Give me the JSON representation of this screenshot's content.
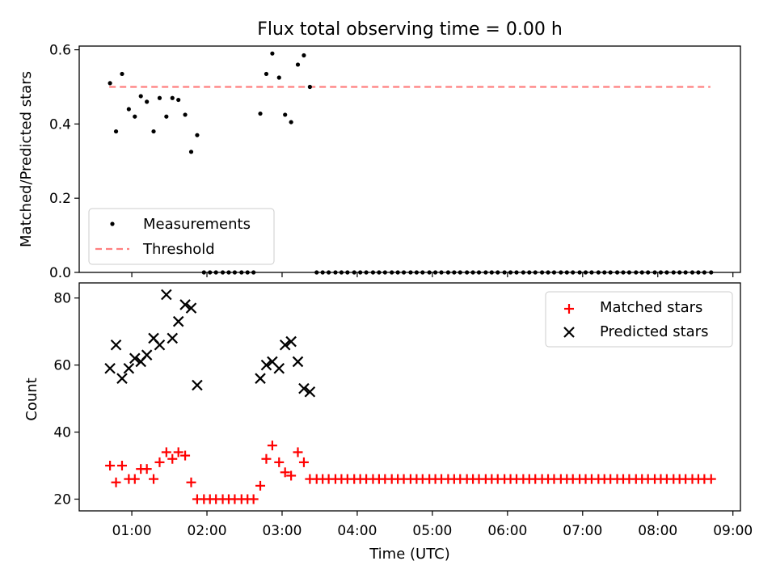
{
  "figure": {
    "title": "Flux total observing time = 0.00 h",
    "xlabel": "Time (UTC)",
    "x_tick_labels": [
      "01:00",
      "02:00",
      "03:00",
      "04:00",
      "05:00",
      "06:00",
      "07:00",
      "08:00",
      "09:00"
    ]
  },
  "chart_data": [
    {
      "type": "scatter",
      "ylabel": "Matched/Predicted stars",
      "ylim": [
        0,
        0.61
      ],
      "y_ticks": [
        0.0,
        0.2,
        0.4,
        0.6
      ],
      "y_tick_labels": [
        "0.0",
        "0.2",
        "0.4",
        "0.6"
      ],
      "x_range_hours": [
        0.3,
        9.1
      ],
      "grid": false,
      "legend_position": "lower-left",
      "threshold": 0.5,
      "threshold_x_range_hours": [
        0.7,
        8.7
      ],
      "series": [
        {
          "name": "Measurements",
          "marker": "dot",
          "color": "#000000",
          "points": [
            [
              0.71,
              0.51
            ],
            [
              0.79,
              0.38
            ],
            [
              0.87,
              0.535
            ],
            [
              0.96,
              0.44
            ],
            [
              1.04,
              0.42
            ],
            [
              1.12,
              0.475
            ],
            [
              1.2,
              0.46
            ],
            [
              1.29,
              0.38
            ],
            [
              1.37,
              0.47
            ],
            [
              1.46,
              0.42
            ],
            [
              1.54,
              0.47
            ],
            [
              1.62,
              0.465
            ],
            [
              1.71,
              0.425
            ],
            [
              1.79,
              0.325
            ],
            [
              1.87,
              0.37
            ],
            [
              1.96,
              0.0
            ],
            [
              2.04,
              0.0
            ],
            [
              2.12,
              0.0
            ],
            [
              2.21,
              0.0
            ],
            [
              2.29,
              0.0
            ],
            [
              2.37,
              0.0
            ],
            [
              2.46,
              0.0
            ],
            [
              2.54,
              0.0
            ],
            [
              2.62,
              0.0
            ],
            [
              2.71,
              0.428
            ],
            [
              2.79,
              0.535
            ],
            [
              2.87,
              0.59
            ],
            [
              2.96,
              0.525
            ],
            [
              3.04,
              0.425
            ],
            [
              3.12,
              0.405
            ],
            [
              3.21,
              0.56
            ],
            [
              3.29,
              0.585
            ],
            [
              3.37,
              0.5
            ],
            [
              3.46,
              0.0
            ],
            [
              3.54,
              0.0
            ],
            [
              3.62,
              0.0
            ],
            [
              3.71,
              0.0
            ],
            [
              3.79,
              0.0
            ],
            [
              3.87,
              0.0
            ],
            [
              3.96,
              0.0
            ],
            [
              4.04,
              0.0
            ],
            [
              4.12,
              0.0
            ],
            [
              4.21,
              0.0
            ],
            [
              4.29,
              0.0
            ],
            [
              4.37,
              0.0
            ],
            [
              4.46,
              0.0
            ],
            [
              4.54,
              0.0
            ],
            [
              4.62,
              0.0
            ],
            [
              4.71,
              0.0
            ],
            [
              4.79,
              0.0
            ],
            [
              4.87,
              0.0
            ],
            [
              4.96,
              0.0
            ],
            [
              5.04,
              0.0
            ],
            [
              5.12,
              0.0
            ],
            [
              5.21,
              0.0
            ],
            [
              5.29,
              0.0
            ],
            [
              5.37,
              0.0
            ],
            [
              5.46,
              0.0
            ],
            [
              5.54,
              0.0
            ],
            [
              5.62,
              0.0
            ],
            [
              5.71,
              0.0
            ],
            [
              5.79,
              0.0
            ],
            [
              5.87,
              0.0
            ],
            [
              5.96,
              0.0
            ],
            [
              6.04,
              0.0
            ],
            [
              6.12,
              0.0
            ],
            [
              6.21,
              0.0
            ],
            [
              6.29,
              0.0
            ],
            [
              6.37,
              0.0
            ],
            [
              6.46,
              0.0
            ],
            [
              6.54,
              0.0
            ],
            [
              6.62,
              0.0
            ],
            [
              6.71,
              0.0
            ],
            [
              6.79,
              0.0
            ],
            [
              6.87,
              0.0
            ],
            [
              6.96,
              0.0
            ],
            [
              7.04,
              0.0
            ],
            [
              7.12,
              0.0
            ],
            [
              7.21,
              0.0
            ],
            [
              7.29,
              0.0
            ],
            [
              7.37,
              0.0
            ],
            [
              7.46,
              0.0
            ],
            [
              7.54,
              0.0
            ],
            [
              7.62,
              0.0
            ],
            [
              7.71,
              0.0
            ],
            [
              7.79,
              0.0
            ],
            [
              7.87,
              0.0
            ],
            [
              7.96,
              0.0
            ],
            [
              8.04,
              0.0
            ],
            [
              8.12,
              0.0
            ],
            [
              8.21,
              0.0
            ],
            [
              8.29,
              0.0
            ],
            [
              8.37,
              0.0
            ],
            [
              8.46,
              0.0
            ],
            [
              8.54,
              0.0
            ],
            [
              8.62,
              0.0
            ],
            [
              8.71,
              0.0
            ]
          ]
        },
        {
          "name": "Threshold",
          "marker": "dashed-line",
          "color": "#ff7f7f"
        }
      ]
    },
    {
      "type": "scatter",
      "ylabel": "Count",
      "ylim": [
        16.5,
        84.5
      ],
      "y_ticks": [
        20,
        40,
        60,
        80
      ],
      "y_tick_labels": [
        "20",
        "40",
        "60",
        "80"
      ],
      "x_range_hours": [
        0.3,
        9.1
      ],
      "grid": false,
      "legend_position": "upper-right",
      "series": [
        {
          "name": "Matched stars",
          "marker": "plus",
          "color": "#ff0000",
          "points": [
            [
              0.71,
              30
            ],
            [
              0.79,
              25
            ],
            [
              0.87,
              30
            ],
            [
              0.96,
              26
            ],
            [
              1.04,
              26
            ],
            [
              1.12,
              29
            ],
            [
              1.2,
              29
            ],
            [
              1.29,
              26
            ],
            [
              1.37,
              31
            ],
            [
              1.46,
              34
            ],
            [
              1.54,
              32
            ],
            [
              1.62,
              34
            ],
            [
              1.71,
              33
            ],
            [
              1.79,
              25
            ],
            [
              1.87,
              20
            ],
            [
              1.96,
              20
            ],
            [
              2.04,
              20
            ],
            [
              2.12,
              20
            ],
            [
              2.21,
              20
            ],
            [
              2.29,
              20
            ],
            [
              2.37,
              20
            ],
            [
              2.46,
              20
            ],
            [
              2.54,
              20
            ],
            [
              2.62,
              20
            ],
            [
              2.71,
              24
            ],
            [
              2.79,
              32
            ],
            [
              2.87,
              36
            ],
            [
              2.96,
              31
            ],
            [
              3.04,
              28
            ],
            [
              3.12,
              27
            ],
            [
              3.21,
              34
            ],
            [
              3.29,
              31
            ],
            [
              3.37,
              26
            ],
            [
              3.46,
              26
            ],
            [
              3.54,
              26
            ],
            [
              3.62,
              26
            ],
            [
              3.71,
              26
            ],
            [
              3.79,
              26
            ],
            [
              3.87,
              26
            ],
            [
              3.96,
              26
            ],
            [
              4.04,
              26
            ],
            [
              4.12,
              26
            ],
            [
              4.21,
              26
            ],
            [
              4.29,
              26
            ],
            [
              4.37,
              26
            ],
            [
              4.46,
              26
            ],
            [
              4.54,
              26
            ],
            [
              4.62,
              26
            ],
            [
              4.71,
              26
            ],
            [
              4.79,
              26
            ],
            [
              4.87,
              26
            ],
            [
              4.96,
              26
            ],
            [
              5.04,
              26
            ],
            [
              5.12,
              26
            ],
            [
              5.21,
              26
            ],
            [
              5.29,
              26
            ],
            [
              5.37,
              26
            ],
            [
              5.46,
              26
            ],
            [
              5.54,
              26
            ],
            [
              5.62,
              26
            ],
            [
              5.71,
              26
            ],
            [
              5.79,
              26
            ],
            [
              5.87,
              26
            ],
            [
              5.96,
              26
            ],
            [
              6.04,
              26
            ],
            [
              6.12,
              26
            ],
            [
              6.21,
              26
            ],
            [
              6.29,
              26
            ],
            [
              6.37,
              26
            ],
            [
              6.46,
              26
            ],
            [
              6.54,
              26
            ],
            [
              6.62,
              26
            ],
            [
              6.71,
              26
            ],
            [
              6.79,
              26
            ],
            [
              6.87,
              26
            ],
            [
              6.96,
              26
            ],
            [
              7.04,
              26
            ],
            [
              7.12,
              26
            ],
            [
              7.21,
              26
            ],
            [
              7.29,
              26
            ],
            [
              7.37,
              26
            ],
            [
              7.46,
              26
            ],
            [
              7.54,
              26
            ],
            [
              7.62,
              26
            ],
            [
              7.71,
              26
            ],
            [
              7.79,
              26
            ],
            [
              7.87,
              26
            ],
            [
              7.96,
              26
            ],
            [
              8.04,
              26
            ],
            [
              8.12,
              26
            ],
            [
              8.21,
              26
            ],
            [
              8.29,
              26
            ],
            [
              8.37,
              26
            ],
            [
              8.46,
              26
            ],
            [
              8.54,
              26
            ],
            [
              8.62,
              26
            ],
            [
              8.71,
              26
            ]
          ]
        },
        {
          "name": "Predicted stars",
          "marker": "x",
          "color": "#000000",
          "points": [
            [
              0.71,
              59
            ],
            [
              0.79,
              66
            ],
            [
              0.87,
              56
            ],
            [
              0.96,
              59
            ],
            [
              1.04,
              62
            ],
            [
              1.12,
              61
            ],
            [
              1.2,
              63
            ],
            [
              1.29,
              68
            ],
            [
              1.37,
              66
            ],
            [
              1.46,
              81
            ],
            [
              1.54,
              68
            ],
            [
              1.62,
              73
            ],
            [
              1.71,
              78
            ],
            [
              1.79,
              77
            ],
            [
              1.87,
              54
            ],
            [
              2.71,
              56
            ],
            [
              2.79,
              60
            ],
            [
              2.87,
              61
            ],
            [
              2.96,
              59
            ],
            [
              3.04,
              66
            ],
            [
              3.12,
              67
            ],
            [
              3.21,
              61
            ],
            [
              3.29,
              53
            ],
            [
              3.37,
              52
            ]
          ]
        }
      ]
    }
  ]
}
